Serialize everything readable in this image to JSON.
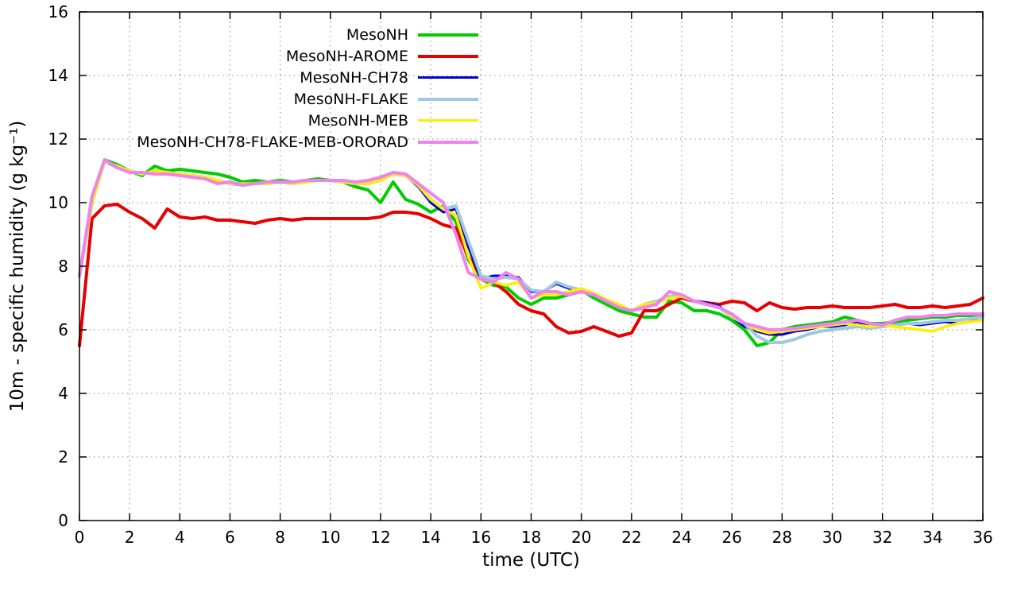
{
  "chart_data": {
    "type": "line",
    "title": "",
    "xlabel": "time (UTC)",
    "ylabel": "10m - specific humidity (g kg⁻¹)",
    "xlim": [
      0,
      36
    ],
    "ylim": [
      0,
      16
    ],
    "xticks": [
      0,
      2,
      4,
      6,
      8,
      10,
      12,
      14,
      16,
      18,
      20,
      22,
      24,
      26,
      28,
      30,
      32,
      34,
      36
    ],
    "yticks": [
      0,
      2,
      4,
      6,
      8,
      10,
      12,
      14,
      16
    ],
    "grid": true,
    "legend_position": "top-center",
    "x": [
      0,
      0.5,
      1,
      1.5,
      2,
      2.5,
      3,
      3.5,
      4,
      4.5,
      5,
      5.5,
      6,
      6.5,
      7,
      7.5,
      8,
      8.5,
      9,
      9.5,
      10,
      10.5,
      11,
      11.5,
      12,
      12.5,
      13,
      13.5,
      14,
      14.5,
      15,
      15.5,
      16,
      16.5,
      17,
      17.5,
      18,
      18.5,
      19,
      19.5,
      20,
      20.5,
      21,
      21.5,
      22,
      22.5,
      23,
      23.5,
      24,
      24.5,
      25,
      25.5,
      26,
      26.5,
      27,
      27.5,
      28,
      28.5,
      29,
      29.5,
      30,
      30.5,
      31,
      31.5,
      32,
      32.5,
      33,
      33.5,
      34,
      34.5,
      35,
      35.5,
      36
    ],
    "series": [
      {
        "name": "MesoNH",
        "color": "#00cc00",
        "width": 4,
        "values": [
          7.7,
          10.0,
          11.35,
          11.2,
          11.0,
          10.85,
          11.15,
          11.0,
          11.05,
          11.0,
          10.95,
          10.9,
          10.8,
          10.65,
          10.7,
          10.65,
          10.7,
          10.65,
          10.7,
          10.75,
          10.7,
          10.65,
          10.5,
          10.4,
          10.0,
          10.65,
          10.1,
          9.95,
          9.7,
          9.9,
          9.4,
          8.2,
          7.6,
          7.4,
          7.35,
          7.0,
          6.8,
          7.0,
          7.0,
          7.1,
          7.25,
          7.0,
          6.8,
          6.6,
          6.5,
          6.4,
          6.4,
          6.9,
          6.85,
          6.6,
          6.6,
          6.5,
          6.3,
          6.0,
          5.5,
          5.6,
          6.0,
          6.1,
          6.15,
          6.2,
          6.25,
          6.4,
          6.3,
          6.2,
          6.2,
          6.25,
          6.3,
          6.35,
          6.4,
          6.4,
          6.45,
          6.45,
          6.5
        ]
      },
      {
        "name": "MesoNH-AROME",
        "color": "#e60000",
        "width": 4,
        "values": [
          5.5,
          9.5,
          9.9,
          9.95,
          9.7,
          9.5,
          9.2,
          9.8,
          9.55,
          9.5,
          9.55,
          9.45,
          9.45,
          9.4,
          9.35,
          9.45,
          9.5,
          9.45,
          9.5,
          9.5,
          9.5,
          9.5,
          9.5,
          9.5,
          9.55,
          9.7,
          9.7,
          9.65,
          9.5,
          9.3,
          9.2,
          8.3,
          7.7,
          7.5,
          7.2,
          6.8,
          6.6,
          6.5,
          6.1,
          5.9,
          5.95,
          6.1,
          5.95,
          5.8,
          5.9,
          6.6,
          6.6,
          6.8,
          7.0,
          6.9,
          6.85,
          6.8,
          6.9,
          6.85,
          6.6,
          6.85,
          6.7,
          6.65,
          6.7,
          6.7,
          6.75,
          6.7,
          6.7,
          6.7,
          6.75,
          6.8,
          6.7,
          6.7,
          6.75,
          6.7,
          6.75,
          6.8,
          7.0
        ]
      },
      {
        "name": "MesoNH-CH78",
        "color": "#0000cc",
        "width": 3,
        "values": [
          7.7,
          10.0,
          11.3,
          11.1,
          11.0,
          10.9,
          11.0,
          10.95,
          10.9,
          10.85,
          10.8,
          10.7,
          10.6,
          10.55,
          10.6,
          10.6,
          10.65,
          10.6,
          10.65,
          10.7,
          10.7,
          10.65,
          10.6,
          10.6,
          10.7,
          10.9,
          10.85,
          10.5,
          10.0,
          9.7,
          9.8,
          8.6,
          7.6,
          7.7,
          7.7,
          7.65,
          7.2,
          7.2,
          7.45,
          7.3,
          7.2,
          7.1,
          6.9,
          6.75,
          6.6,
          6.8,
          6.9,
          7.0,
          7.1,
          6.9,
          6.85,
          6.75,
          6.4,
          6.1,
          5.95,
          5.85,
          5.85,
          5.95,
          6.0,
          6.1,
          6.1,
          6.15,
          6.25,
          6.1,
          6.1,
          6.15,
          6.2,
          6.15,
          6.2,
          6.25,
          6.2,
          6.25,
          6.45
        ]
      },
      {
        "name": "MesoNH-FLAKE",
        "color": "#a0c8e0",
        "width": 4,
        "values": [
          7.7,
          10.0,
          11.3,
          11.15,
          11.0,
          10.9,
          11.0,
          10.95,
          10.9,
          10.85,
          10.8,
          10.7,
          10.6,
          10.55,
          10.6,
          10.6,
          10.65,
          10.6,
          10.65,
          10.7,
          10.7,
          10.65,
          10.6,
          10.6,
          10.7,
          10.9,
          10.85,
          10.55,
          10.1,
          9.8,
          9.9,
          8.8,
          7.7,
          7.6,
          7.65,
          7.6,
          7.25,
          7.2,
          7.5,
          7.35,
          7.25,
          7.1,
          6.9,
          6.75,
          6.6,
          6.8,
          6.9,
          7.05,
          7.1,
          6.9,
          6.8,
          6.7,
          6.4,
          6.2,
          5.8,
          5.6,
          5.6,
          5.7,
          5.85,
          5.95,
          6.0,
          6.05,
          6.1,
          6.05,
          6.1,
          6.15,
          6.2,
          6.2,
          6.25,
          6.3,
          6.3,
          6.35,
          6.4
        ]
      },
      {
        "name": "MesoNH-MEB",
        "color": "#ffee00",
        "width": 3.5,
        "values": [
          7.7,
          10.0,
          11.3,
          11.15,
          11.0,
          10.9,
          11.0,
          10.95,
          10.9,
          10.85,
          10.8,
          10.7,
          10.6,
          10.6,
          10.6,
          10.6,
          10.65,
          10.6,
          10.65,
          10.7,
          10.7,
          10.65,
          10.6,
          10.6,
          10.7,
          10.9,
          10.85,
          10.55,
          10.1,
          9.8,
          9.6,
          8.3,
          7.3,
          7.5,
          7.4,
          7.5,
          7.0,
          7.1,
          7.1,
          7.2,
          7.3,
          7.15,
          6.95,
          6.8,
          6.6,
          6.8,
          6.85,
          7.0,
          7.05,
          6.9,
          6.8,
          6.7,
          6.45,
          6.2,
          6.0,
          5.9,
          5.95,
          6.0,
          6.05,
          6.1,
          6.15,
          6.2,
          6.15,
          6.1,
          6.15,
          6.1,
          6.05,
          6.0,
          5.95,
          6.1,
          6.2,
          6.25,
          6.3
        ]
      },
      {
        "name": "MesoNH-CH78-FLAKE-MEB-ORORAD",
        "color": "#ee82ee",
        "width": 4,
        "values": [
          7.7,
          10.2,
          11.35,
          11.1,
          10.95,
          10.95,
          10.9,
          10.9,
          10.85,
          10.8,
          10.75,
          10.6,
          10.65,
          10.55,
          10.6,
          10.65,
          10.65,
          10.65,
          10.7,
          10.7,
          10.7,
          10.7,
          10.65,
          10.7,
          10.8,
          10.95,
          10.9,
          10.6,
          10.3,
          10.0,
          9.0,
          7.8,
          7.6,
          7.5,
          7.8,
          7.6,
          7.0,
          7.2,
          7.2,
          7.1,
          7.2,
          7.1,
          6.9,
          6.7,
          6.6,
          6.7,
          6.8,
          7.2,
          7.1,
          6.9,
          6.8,
          6.7,
          6.5,
          6.2,
          6.1,
          6.0,
          6.0,
          6.05,
          6.1,
          6.15,
          6.2,
          6.25,
          6.3,
          6.2,
          6.15,
          6.3,
          6.4,
          6.4,
          6.45,
          6.45,
          6.5,
          6.5,
          6.5
        ]
      }
    ]
  }
}
